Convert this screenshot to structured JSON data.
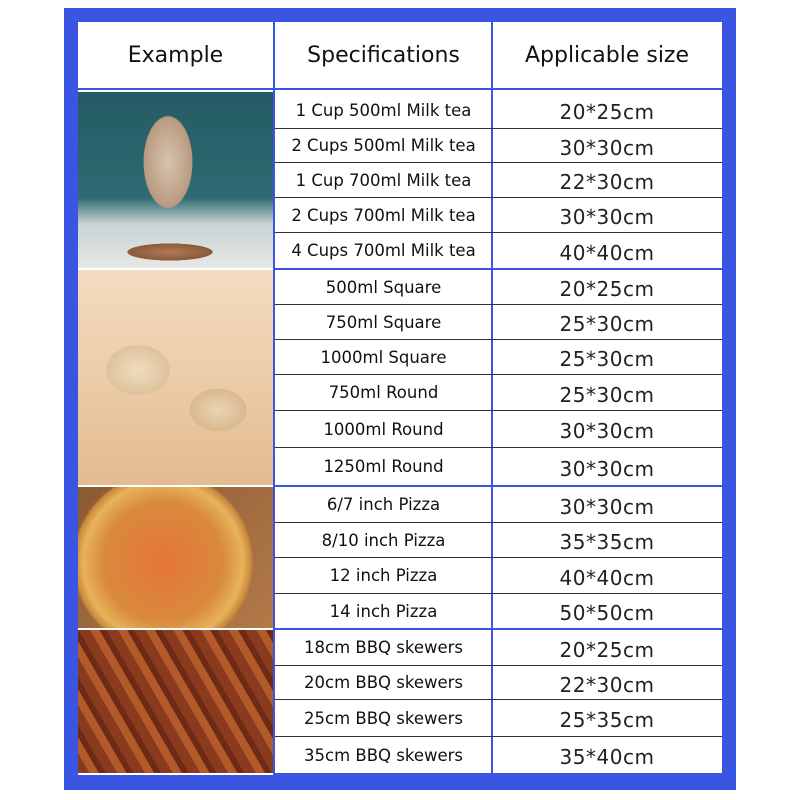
{
  "colors": {
    "border": "#3a55e2"
  },
  "header": {
    "example": "Example",
    "specifications": "Specifications",
    "applicable_size": "Applicable size"
  },
  "groups": [
    {
      "image": "milk-tea-cup-photo",
      "rows": [
        {
          "spec": "1 Cup 500ml Milk tea",
          "size": "20*25cm"
        },
        {
          "spec": "2 Cups 500ml Milk tea",
          "size": "30*30cm"
        },
        {
          "spec": "1 Cup 700ml Milk tea",
          "size": "22*30cm"
        },
        {
          "spec": "2 Cups 700ml Milk tea",
          "size": "30*30cm"
        },
        {
          "spec": "4 Cups 700ml Milk tea",
          "size": "40*40cm"
        }
      ]
    },
    {
      "image": "food-containers-photo",
      "rows": [
        {
          "spec": "500ml Square",
          "size": "20*25cm"
        },
        {
          "spec": "750ml Square",
          "size": "25*30cm"
        },
        {
          "spec": "1000ml Square",
          "size": "25*30cm"
        },
        {
          "spec": "750ml Round",
          "size": "25*30cm"
        },
        {
          "spec": "1000ml Round",
          "size": "30*30cm"
        },
        {
          "spec": "1250ml Round",
          "size": "30*30cm"
        }
      ]
    },
    {
      "image": "pizza-photo",
      "rows": [
        {
          "spec": "6/7 inch Pizza",
          "size": "30*30cm"
        },
        {
          "spec": "8/10 inch Pizza",
          "size": "35*35cm"
        },
        {
          "spec": "12 inch Pizza",
          "size": "40*40cm"
        },
        {
          "spec": "14 inch Pizza",
          "size": "50*50cm"
        }
      ]
    },
    {
      "image": "bbq-skewers-photo",
      "rows": [
        {
          "spec": "18cm BBQ skewers",
          "size": "20*25cm"
        },
        {
          "spec": "20cm BBQ skewers",
          "size": "22*30cm"
        },
        {
          "spec": "25cm BBQ skewers",
          "size": "25*35cm"
        },
        {
          "spec": "35cm BBQ skewers",
          "size": "35*40cm"
        }
      ]
    }
  ]
}
